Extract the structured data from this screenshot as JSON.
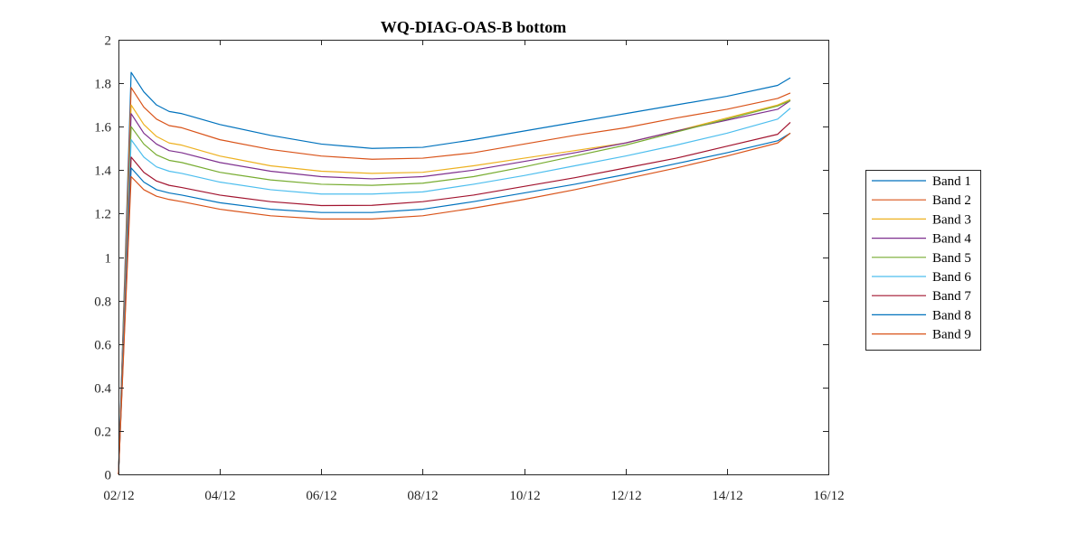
{
  "chart_data": {
    "type": "line",
    "title": "WQ-DIAG-OAS-B bottom",
    "xlabel": "",
    "ylabel": "",
    "x_ticks": [
      "02/12",
      "04/12",
      "06/12",
      "08/12",
      "10/12",
      "12/12",
      "14/12",
      "16/12"
    ],
    "y_ticks": [
      "0",
      "0.2",
      "0.4",
      "0.6",
      "0.8",
      "1",
      "1.2",
      "1.4",
      "1.6",
      "1.8",
      "2"
    ],
    "xlim": [
      "02/12",
      "16/12"
    ],
    "ylim": [
      0,
      2
    ],
    "x": [
      "02/12 00:00",
      "02/12 06:00",
      "02/12 12:00",
      "02/12 18:00",
      "03/12 00:00",
      "03/12 06:00",
      "04/12 00:00",
      "05/12 00:00",
      "06/12 00:00",
      "07/12 00:00",
      "08/12 00:00",
      "09/12 00:00",
      "10/12 00:00",
      "11/12 00:00",
      "12/12 00:00",
      "13/12 00:00",
      "14/12 00:00",
      "15/12 00:00",
      "15/12 06:00"
    ],
    "series": [
      {
        "name": "Band 1",
        "color": "#0072BD",
        "values": [
          0.0,
          1.85,
          1.76,
          1.7,
          1.67,
          1.66,
          1.61,
          1.56,
          1.52,
          1.5,
          1.505,
          1.54,
          1.58,
          1.62,
          1.66,
          1.7,
          1.74,
          1.79,
          1.825
        ]
      },
      {
        "name": "Band 2",
        "color": "#D95319",
        "values": [
          0.0,
          1.78,
          1.69,
          1.635,
          1.605,
          1.595,
          1.54,
          1.495,
          1.465,
          1.45,
          1.455,
          1.48,
          1.52,
          1.56,
          1.595,
          1.64,
          1.68,
          1.73,
          1.755
        ]
      },
      {
        "name": "Band 3",
        "color": "#EDB120",
        "values": [
          0.0,
          1.7,
          1.61,
          1.555,
          1.525,
          1.515,
          1.465,
          1.42,
          1.395,
          1.385,
          1.39,
          1.42,
          1.455,
          1.49,
          1.525,
          1.58,
          1.64,
          1.7,
          1.725
        ]
      },
      {
        "name": "Band 4",
        "color": "#7E2F8E",
        "values": [
          0.0,
          1.66,
          1.57,
          1.52,
          1.49,
          1.48,
          1.435,
          1.395,
          1.37,
          1.36,
          1.37,
          1.4,
          1.44,
          1.48,
          1.525,
          1.58,
          1.63,
          1.68,
          1.72
        ]
      },
      {
        "name": "Band 5",
        "color": "#77AC30",
        "values": [
          0.0,
          1.6,
          1.52,
          1.47,
          1.445,
          1.435,
          1.39,
          1.355,
          1.335,
          1.33,
          1.34,
          1.37,
          1.415,
          1.465,
          1.515,
          1.575,
          1.635,
          1.695,
          1.72
        ]
      },
      {
        "name": "Band 6",
        "color": "#4DBEEE",
        "values": [
          0.0,
          1.54,
          1.46,
          1.415,
          1.395,
          1.385,
          1.345,
          1.31,
          1.29,
          1.29,
          1.3,
          1.335,
          1.375,
          1.42,
          1.465,
          1.515,
          1.57,
          1.635,
          1.685
        ]
      },
      {
        "name": "Band 7",
        "color": "#A2142F",
        "values": [
          0.0,
          1.46,
          1.39,
          1.35,
          1.33,
          1.32,
          1.285,
          1.255,
          1.237,
          1.238,
          1.255,
          1.285,
          1.325,
          1.365,
          1.41,
          1.455,
          1.51,
          1.565,
          1.62
        ]
      },
      {
        "name": "Band 8",
        "color": "#0072BD",
        "values": [
          0.0,
          1.41,
          1.345,
          1.31,
          1.295,
          1.285,
          1.25,
          1.22,
          1.205,
          1.205,
          1.22,
          1.255,
          1.295,
          1.335,
          1.38,
          1.43,
          1.48,
          1.535,
          1.57
        ]
      },
      {
        "name": "Band 9",
        "color": "#D95319",
        "values": [
          0.0,
          1.37,
          1.31,
          1.28,
          1.265,
          1.255,
          1.22,
          1.19,
          1.175,
          1.175,
          1.19,
          1.225,
          1.265,
          1.31,
          1.36,
          1.41,
          1.465,
          1.525,
          1.57
        ]
      }
    ],
    "grid": false,
    "legend_position": "right"
  }
}
